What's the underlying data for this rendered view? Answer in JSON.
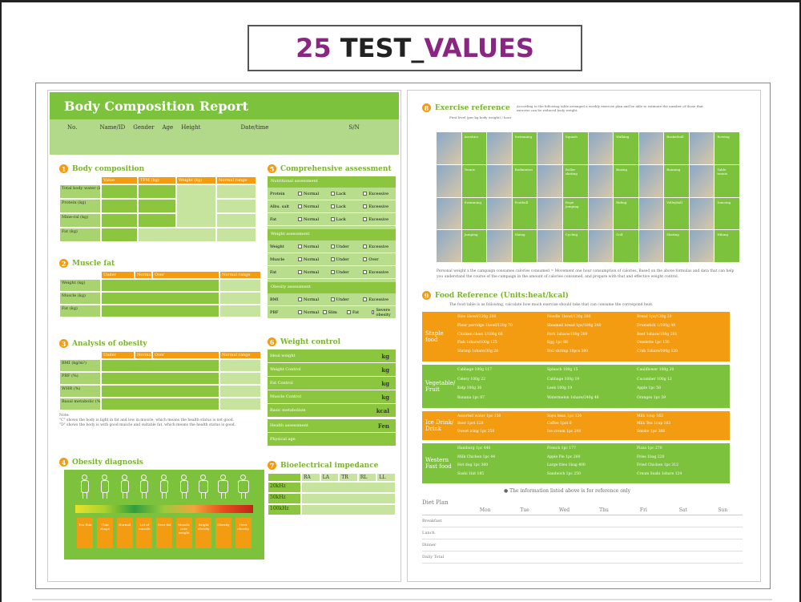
{
  "title": {
    "num": "25",
    "mid": " TEST_",
    "val": "VALUES"
  },
  "report": {
    "title": "Body Composition Report",
    "fields": [
      "No.",
      "Name/ID",
      "Gender",
      "Age",
      "Height",
      "Date/time",
      "S/N"
    ],
    "sec1": "Body composition",
    "sec1_cols": [
      "Value",
      "TFM (kg)",
      "Weight (kg)",
      "Normal range"
    ],
    "sec1_rows": [
      "Total body water (kg)",
      "Protein (kg)",
      "Mine-ral (kg)",
      "Fat (kg)"
    ],
    "sec2": "Muscle fat",
    "sec2_cols": [
      "Under",
      "Normal",
      "Over",
      "Normal range"
    ],
    "sec2_rows": [
      "Weight (kg)",
      "Muscle (kg)",
      "Fat (kg)"
    ],
    "sec3": "Analysis of obesity",
    "sec3_cols": [
      "Under",
      "Normal",
      "Over",
      "Normal range"
    ],
    "sec3_rows": [
      "BMI (kg/m²)",
      "PBF (%)",
      "WHR (%)",
      "Basal metabolic (%)"
    ],
    "note_lines": [
      "Note:",
      "\"C\" shows the body is light in fat and low in muscle, which means the health status is not good.",
      "\"D\" shows the body is with good muscle and suitable fat, which means the health status is good."
    ],
    "sec4": "Obesity diagnosis",
    "sec4_tiles": [
      "Too thin",
      "Thin shape",
      "Normal",
      "Lot of muscle",
      "Over fat",
      "Muscle over weight",
      "Bright obesity",
      "Obesity",
      "Over obesity"
    ],
    "sec5": "Comprehensive assessment",
    "sec5_band1": "Nutritional assessment",
    "sec5_rows1": [
      {
        "label": "Protein",
        "opts": [
          "Normal",
          "Lack",
          "Excessive"
        ]
      },
      {
        "label": "Albu. salt",
        "opts": [
          "Normal",
          "Lack",
          "Excessive"
        ]
      },
      {
        "label": "Fat",
        "opts": [
          "Normal",
          "Lack",
          "Excessive"
        ]
      }
    ],
    "sec5_band2": "Weight assessment",
    "sec5_rows2": [
      {
        "label": "Weight",
        "opts": [
          "Normal",
          "Under",
          "Excessive"
        ]
      },
      {
        "label": "Muscle",
        "opts": [
          "Normal",
          "Under",
          "Over"
        ]
      },
      {
        "label": "Fat",
        "opts": [
          "Normal",
          "Under",
          "Excessive"
        ]
      }
    ],
    "sec5_band3": "Obesity assessment",
    "sec5_rows3": [
      {
        "label": "BMI",
        "opts": [
          "Normal",
          "Under",
          "Excessive"
        ]
      },
      {
        "label": "PBF",
        "opts": [
          "Normal",
          "Slim",
          "Fat",
          "Severe obesity"
        ]
      }
    ],
    "sec6": "Weight control",
    "sec6_rows": [
      {
        "label": "Ideal weight",
        "unit": "kg"
      },
      {
        "label": "Weight Control",
        "unit": "kg"
      },
      {
        "label": "Fat Control",
        "unit": "kg"
      },
      {
        "label": "Muscle Control",
        "unit": "kg"
      },
      {
        "label": "Basic metabolism",
        "unit": "kcal"
      },
      {
        "label": "Health assessment",
        "unit": "Fen"
      },
      {
        "label": "Physical age",
        "unit": ""
      }
    ],
    "sec7": "Bioelectrical impedance",
    "sec7_cols": [
      "RA",
      "LA",
      "TR",
      "RL",
      "LL"
    ],
    "sec7_rows": [
      "20kHz",
      "50kHz",
      "100kHz"
    ]
  },
  "reference": {
    "sec8": "Exercise reference",
    "sec8_desc": "According to the following table arranged a weekly exercise plan and be able to estimate the number of those that exercise can be reduced body weight.",
    "sec8_sub": "First level (per kg body weight) / hour",
    "exercise_labels": [
      "Aerobics",
      "Swimming",
      "Squash",
      "Walking",
      "Basketball",
      "Rowing",
      "Tennis",
      "Badminton",
      "Roller skating",
      "Boxing",
      "Running",
      "Table tennis",
      "Swimming",
      "Football",
      "Rope jumping",
      "Riding",
      "Volleyball",
      "Dancing",
      "Jumping",
      "Skiing",
      "Cycling",
      "Golf",
      "Skating",
      "Hiking"
    ],
    "sec8_note": "Personal weight x the campaign consumes calories consumed = Movement one hour consumption of calories. Based on the above formulas and data that can help you understand the course of the campaign in the amount of calories consumed, and prepare with that and effective weight control.",
    "sec9": "Food Reference (Units:heat/kcal)",
    "sec9_desc": "The food table is as following, calculate how much exercise should take that can consume the correspond heat.",
    "food": [
      {
        "cat": "Staple food",
        "color": "orange",
        "items": [
          "Rice 1bowl/120g 208",
          "Noodle 1bowl/120g 280",
          "Bread 1pc/120g 20",
          "Flour porridge 1bowl/120g 70",
          "Steamed bread 1pc/100g 240",
          "Drumstick 1/100g 49",
          "Chicken chest 1/100g 66",
          "Pork 1share/100g 289",
          "Beef 1share/100g 201",
          "Fish 1share/100g 125",
          "Egg 1pc 88",
          "Omelette 1pc 130",
          "Shrimp 1share/30g 28",
          "Boil shrimp 10pcs 180",
          "Crab 1share/100g 120"
        ]
      },
      {
        "cat": "Vegetable/ Fruit",
        "color": "green",
        "items": [
          "Cabbage 100g 117",
          "Spinach 100g 15",
          "Cauliflower 100g 20",
          "Celery 100g 22",
          "Cabbage 100g 19",
          "Cucumber 100g 12",
          "Kelp 100g 36",
          "Leek 100g 19",
          "Apple 1pc 58",
          "Banana 1pc 87",
          "Watermelon 1share/240g 48",
          "Oranges 1pc 59"
        ]
      },
      {
        "cat": "Ice Drink/ Drink",
        "color": "orange",
        "items": [
          "Assorted water 1pc 150",
          "Soya bean 1pc 120",
          "Milk 1cup 163",
          "Beer 1pot 128",
          "Coffee 1pot 6",
          "Milk Tea 1cup 163",
          "Sweet icing 1pc 250",
          "Ice cream 1pc 240",
          "Smoke 1pc 388"
        ]
      },
      {
        "cat": "Western Fast food",
        "color": "green",
        "items": [
          "Hamburg 1pc 440",
          "French 1pc 177",
          "Pizza 1pc 270",
          "Milk Chicken 1pc 44",
          "Apple Pie 1pc 260",
          "Fries 1bag 220",
          "Hot dog 1pc 360",
          "Large fries 1bag 400",
          "Fried Chicken 1pc 312",
          "Sushi 1bit 185",
          "Sandwich 1pc 250",
          "Cream Sushi 1share 124"
        ]
      }
    ],
    "food_note": "The information listed above is for reference only",
    "diet_title": "Diet Plan",
    "diet_days": [
      "Mon",
      "Tue",
      "Wed",
      "Thu",
      "Fri",
      "Sat",
      "Sun"
    ],
    "diet_meals": [
      "Breakfast",
      "Lunch",
      "Dinner",
      "Daily Total"
    ]
  }
}
